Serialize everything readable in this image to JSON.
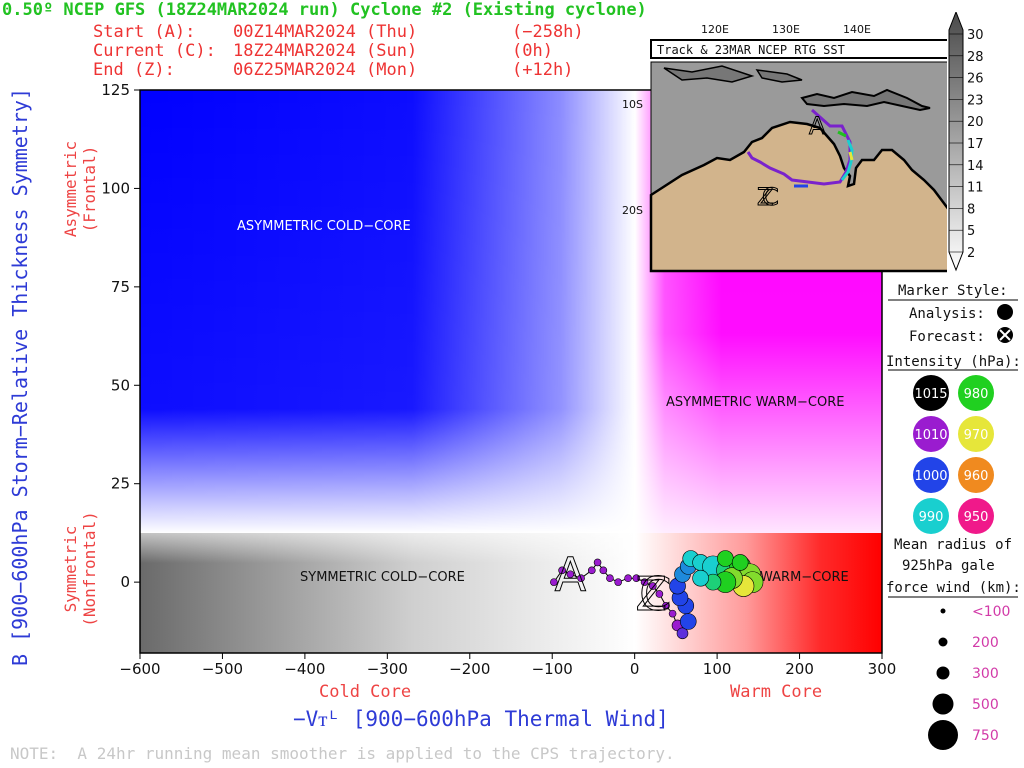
{
  "title": "0.50º NCEP GFS (18Z24MAR2024 run) Cyclone #2 (Existing cyclone)",
  "header": {
    "start": {
      "label": "Start (A):",
      "date": "00Z14MAR2024 (Thu)",
      "offset": "(−258h)"
    },
    "current": {
      "label": "Current (C):",
      "date": "18Z24MAR2024 (Sun)",
      "offset": "(0h)"
    },
    "end": {
      "label": "End (Z):",
      "date": "06Z25MAR2024 (Mon)",
      "offset": "(+12h)"
    }
  },
  "axes": {
    "xtitle": "−Vᴛᴸ [900−600hPa Thermal Wind]",
    "ytitle": "B [900−600hPa Storm−Relative Thickness Symmetry]",
    "cold_core": "Cold Core",
    "warm_core": "Warm Core",
    "asym_line1": "Asymmetric",
    "asym_line2": "(Frontal)",
    "sym_line1": "Symmetric",
    "sym_line2": "(Nonfrontal)"
  },
  "region_labels": {
    "asym_cold": "ASYMMETRIC COLD−CORE",
    "asym_warm": "ASYMMETRIC WARM−CORE",
    "sym_cold": "SYMMETRIC COLD−CORE",
    "sym_warm": "WARM−CORE"
  },
  "note": "NOTE:  A 24hr running mean smoother is applied to the CPS trajectory.",
  "chart_data": {
    "type": "scatter",
    "xlim": [
      -600,
      300
    ],
    "ylim": [
      -18,
      125
    ],
    "x_ticks": [
      -600,
      -500,
      -400,
      -300,
      -200,
      -100,
      0,
      100,
      200,
      300
    ],
    "x_tick_labels": [
      "−600",
      "−500",
      "−400",
      "−300",
      "−200",
      "−100",
      "0",
      "100",
      "200",
      "300"
    ],
    "y_ticks": [
      0,
      25,
      50,
      75,
      100,
      125
    ],
    "y_tick_labels": [
      "0",
      "25",
      "50",
      "75",
      "100",
      "125"
    ],
    "threshold_b": 10,
    "colors": {
      "asym_cold": "#0000ff",
      "asym_warm": "#ff00ff",
      "sym_cold": "#666666",
      "sym_warm": "#ff0000"
    },
    "markers": {
      "start": "A",
      "current": "C",
      "end": "Z"
    },
    "start_point": {
      "x": -78,
      "y": 2
    },
    "end_point": {
      "x": 25,
      "y": -3
    },
    "trajectory": [
      {
        "x": -98,
        "y": 0,
        "mslp": 1010,
        "r": 100
      },
      {
        "x": -88,
        "y": 3,
        "mslp": 1010,
        "r": 100
      },
      {
        "x": -78,
        "y": 2,
        "mslp": 1010,
        "r": 100
      },
      {
        "x": -65,
        "y": 1,
        "mslp": 1010,
        "r": 100
      },
      {
        "x": -52,
        "y": 3,
        "mslp": 1010,
        "r": 100
      },
      {
        "x": -45,
        "y": 5,
        "mslp": 1010,
        "r": 100
      },
      {
        "x": -38,
        "y": 3,
        "mslp": 1010,
        "r": 100
      },
      {
        "x": -30,
        "y": 1,
        "mslp": 1010,
        "r": 100
      },
      {
        "x": -20,
        "y": 0,
        "mslp": 1010,
        "r": 100
      },
      {
        "x": -8,
        "y": 1,
        "mslp": 1010,
        "r": 100
      },
      {
        "x": 2,
        "y": 1,
        "mslp": 1010,
        "r": 100
      },
      {
        "x": 12,
        "y": 0,
        "mslp": 1010,
        "r": 100
      },
      {
        "x": 22,
        "y": -1,
        "mslp": 1010,
        "r": 100
      },
      {
        "x": 30,
        "y": -3,
        "mslp": 1010,
        "r": 100
      },
      {
        "x": 38,
        "y": -6,
        "mslp": 1010,
        "r": 100
      },
      {
        "x": 46,
        "y": -8,
        "mslp": 1010,
        "r": 100
      },
      {
        "x": 52,
        "y": -11,
        "mslp": 1010,
        "r": 200
      },
      {
        "x": 58,
        "y": -13,
        "mslp": 1005,
        "r": 200
      },
      {
        "x": 65,
        "y": -10,
        "mslp": 1000,
        "r": 300
      },
      {
        "x": 62,
        "y": -6,
        "mslp": 1000,
        "r": 300
      },
      {
        "x": 55,
        "y": -4,
        "mslp": 1000,
        "r": 300
      },
      {
        "x": 52,
        "y": -1,
        "mslp": 1000,
        "r": 300
      },
      {
        "x": 58,
        "y": 2,
        "mslp": 995,
        "r": 300
      },
      {
        "x": 65,
        "y": 4,
        "mslp": 995,
        "r": 300
      },
      {
        "x": 68,
        "y": 6,
        "mslp": 990,
        "r": 300
      },
      {
        "x": 80,
        "y": 5,
        "mslp": 990,
        "r": 300
      },
      {
        "x": 95,
        "y": 4,
        "mslp": 990,
        "r": 500
      },
      {
        "x": 112,
        "y": 3,
        "mslp": 985,
        "r": 500
      },
      {
        "x": 128,
        "y": 4,
        "mslp": 980,
        "r": 500
      },
      {
        "x": 140,
        "y": 2,
        "mslp": 975,
        "r": 500
      },
      {
        "x": 143,
        "y": 0,
        "mslp": 975,
        "r": 500
      },
      {
        "x": 132,
        "y": -1,
        "mslp": 970,
        "r": 500
      },
      {
        "x": 118,
        "y": 1,
        "mslp": 975,
        "r": 500
      },
      {
        "x": 110,
        "y": 0,
        "mslp": 980,
        "r": 500
      },
      {
        "x": 95,
        "y": 0,
        "mslp": 985,
        "r": 300
      },
      {
        "x": 80,
        "y": 1,
        "mslp": 990,
        "r": 300
      },
      {
        "x": 110,
        "y": 6,
        "mslp": 980,
        "r": 300
      },
      {
        "x": 128,
        "y": 5,
        "mslp": 980,
        "r": 300
      }
    ]
  },
  "inset": {
    "title": "Track & 23MAR NCEP RTG SST",
    "lon_labels": [
      "120E",
      "130E",
      "140E"
    ],
    "lat_labels": [
      "10S",
      "20S"
    ],
    "colorbar_labels": [
      "30",
      "28",
      "26",
      "23",
      "20",
      "17",
      "14",
      "11",
      "8",
      "5",
      "2"
    ]
  },
  "legend": {
    "marker_style": "Marker Style:",
    "analysis": "Analysis:",
    "forecast": "Forecast:",
    "intensity": "Intensity (hPa):",
    "intensity_items": [
      {
        "value": "1015",
        "color": "#000000"
      },
      {
        "value": "980",
        "color": "#20d020"
      },
      {
        "value": "1010",
        "color": "#9a1ccf"
      },
      {
        "value": "970",
        "color": "#e6e63a"
      },
      {
        "value": "1000",
        "color": "#2244e8"
      },
      {
        "value": "960",
        "color": "#f08a1f"
      },
      {
        "value": "990",
        "color": "#19cfcf"
      },
      {
        "value": "950",
        "color": "#f0198a"
      }
    ],
    "radius_line1": "Mean radius of",
    "radius_line2": "925hPa gale",
    "radius_line3": "force wind (km):",
    "radius_items": [
      "<100",
      "200",
      "300",
      "500",
      "750"
    ]
  }
}
